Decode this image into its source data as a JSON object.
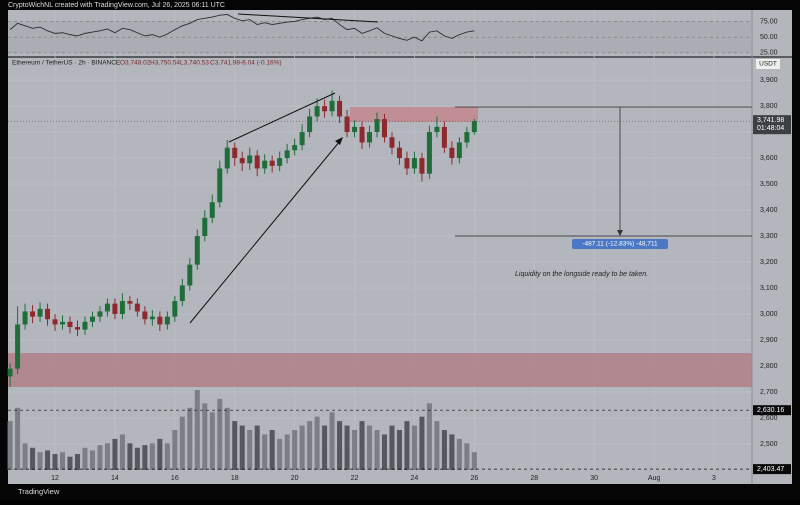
{
  "header": {
    "credit": "CryptoWichNL created with TradingView.com, Jul 26, 2025 06:11 UTC",
    "footer": "TradingView"
  },
  "chart_data": {
    "type": "candlestick",
    "symbol": "Ethereum / TetherUS · 2h · BINANCE",
    "ohlc_text": [
      "O3,748.02",
      "H3,750.54",
      "L3,740.53",
      "C3,741.98",
      "-6.04 (-0.16%)"
    ],
    "currency": "USDT",
    "annotation": "Liquidity on the longside ready to be taken.",
    "measure_label": "-487.11 (-12.83%) -48,711",
    "x": [
      10.5,
      10.75,
      11,
      11.25,
      11.5,
      11.75,
      12,
      12.25,
      12.5,
      12.75,
      13,
      13.25,
      13.5,
      13.75,
      14,
      14.25,
      14.5,
      14.75,
      15,
      15.25,
      15.5,
      15.75,
      16,
      16.25,
      16.5,
      16.75,
      17,
      17.25,
      17.5,
      17.75,
      18,
      18.25,
      18.5,
      18.75,
      19,
      19.25,
      19.5,
      19.75,
      20,
      20.25,
      20.5,
      20.75,
      21,
      21.25,
      21.5,
      21.75,
      22,
      22.25,
      22.5,
      22.75,
      23,
      23.25,
      23.5,
      23.75,
      24,
      24.25,
      24.5,
      24.75,
      25,
      25.25,
      25.5,
      25.75,
      26
    ],
    "open": [
      2760,
      2790,
      2960,
      3010,
      2990,
      3020,
      2980,
      2960,
      2970,
      2950,
      2940,
      2970,
      2990,
      3010,
      3040,
      3000,
      3050,
      3040,
      3010,
      2980,
      2990,
      2960,
      2990,
      3050,
      3110,
      3190,
      3300,
      3370,
      3430,
      3560,
      3640,
      3600,
      3580,
      3610,
      3560,
      3590,
      3570,
      3600,
      3630,
      3650,
      3700,
      3760,
      3800,
      3780,
      3820,
      3760,
      3700,
      3720,
      3660,
      3700,
      3750,
      3680,
      3640,
      3600,
      3560,
      3600,
      3540,
      3700,
      3720,
      3640,
      3600,
      3660,
      3700
    ],
    "high": [
      2810,
      3030,
      3040,
      3035,
      3045,
      3040,
      3000,
      2995,
      2990,
      2975,
      2990,
      3010,
      3030,
      3060,
      3060,
      3080,
      3070,
      3060,
      3030,
      3015,
      3010,
      3010,
      3070,
      3135,
      3215,
      3325,
      3400,
      3460,
      3590,
      3670,
      3660,
      3625,
      3640,
      3630,
      3615,
      3610,
      3625,
      3655,
      3675,
      3730,
      3790,
      3830,
      3825,
      3860,
      3840,
      3785,
      3745,
      3740,
      3725,
      3775,
      3770,
      3700,
      3665,
      3625,
      3625,
      3620,
      3725,
      3760,
      3740,
      3665,
      3680,
      3720,
      3750.54
    ],
    "low": [
      2720,
      2770,
      2940,
      2965,
      2970,
      2955,
      2935,
      2940,
      2925,
      2915,
      2920,
      2950,
      2970,
      2990,
      2980,
      2980,
      3015,
      2990,
      2960,
      2955,
      2935,
      2940,
      2970,
      3030,
      3090,
      3170,
      3280,
      3350,
      3410,
      3540,
      3570,
      3550,
      3555,
      3530,
      3540,
      3545,
      3550,
      3580,
      3610,
      3630,
      3680,
      3740,
      3755,
      3760,
      3735,
      3680,
      3680,
      3635,
      3640,
      3680,
      3660,
      3615,
      3575,
      3535,
      3540,
      3510,
      3520,
      3680,
      3620,
      3575,
      3580,
      3640,
      3690
    ],
    "close": [
      2790,
      2960,
      3010,
      2990,
      3020,
      2980,
      2960,
      2970,
      2950,
      2940,
      2970,
      2990,
      3010,
      3040,
      3000,
      3050,
      3040,
      3010,
      2980,
      2990,
      2960,
      2990,
      3050,
      3110,
      3190,
      3300,
      3370,
      3430,
      3560,
      3640,
      3600,
      3580,
      3610,
      3560,
      3590,
      3570,
      3600,
      3630,
      3650,
      3700,
      3760,
      3800,
      3780,
      3820,
      3760,
      3700,
      3720,
      3660,
      3700,
      3750,
      3680,
      3640,
      3600,
      3560,
      3600,
      3540,
      3700,
      3720,
      3640,
      3600,
      3660,
      3700,
      3741.98
    ],
    "volume": [
      55,
      70,
      30,
      25,
      20,
      22,
      18,
      20,
      15,
      18,
      25,
      22,
      28,
      30,
      35,
      40,
      30,
      25,
      28,
      30,
      35,
      30,
      45,
      60,
      70,
      90,
      75,
      65,
      80,
      70,
      55,
      50,
      45,
      50,
      40,
      45,
      35,
      40,
      45,
      50,
      55,
      60,
      50,
      65,
      55,
      50,
      45,
      55,
      50,
      45,
      40,
      50,
      45,
      55,
      50,
      60,
      75,
      55,
      45,
      40,
      35,
      30,
      20
    ],
    "rsi": [
      62,
      72,
      68,
      64,
      66,
      60,
      56,
      57,
      54,
      52,
      56,
      58,
      60,
      63,
      57,
      64,
      62,
      57,
      52,
      54,
      50,
      55,
      62,
      68,
      72,
      78,
      80,
      82,
      85,
      86,
      80,
      76,
      78,
      70,
      73,
      70,
      72,
      74,
      75,
      78,
      80,
      82,
      78,
      80,
      70,
      62,
      64,
      56,
      60,
      65,
      56,
      52,
      48,
      45,
      50,
      44,
      58,
      60,
      52,
      48,
      54,
      58,
      60
    ],
    "rsi_ylim": [
      20,
      90
    ],
    "rsi_yticks": [
      {
        "value": 75,
        "label": "75.00"
      },
      {
        "value": 50,
        "label": "50.00"
      },
      {
        "value": 25,
        "label": "25.00"
      }
    ],
    "xlim": [
      10.43,
      35.27
    ],
    "xticks": [
      12,
      14,
      16,
      18,
      20,
      22,
      24,
      26,
      28,
      30,
      {
        "value": 32,
        "label": "Aug"
      },
      {
        "value": 34,
        "label": "3"
      }
    ],
    "ylim": [
      2400,
      3985
    ],
    "yticks": [
      {
        "value": 2500,
        "label": "2,500"
      },
      {
        "value": 2600,
        "label": "2,600"
      },
      {
        "value": 2700,
        "label": "2,700"
      },
      {
        "value": 2800,
        "label": "2,800"
      },
      {
        "value": 2900,
        "label": "2,900"
      },
      {
        "value": 3000,
        "label": "3,000"
      },
      {
        "value": 3100,
        "label": "3,100"
      },
      {
        "value": 3200,
        "label": "3,200"
      },
      {
        "value": 3300,
        "label": "3,300"
      },
      {
        "value": 3400,
        "label": "3,400"
      },
      {
        "value": 3500,
        "label": "3,500"
      },
      {
        "value": 3600,
        "label": "3,600"
      },
      {
        "value": 3700,
        "label": "3,700"
      },
      {
        "value": 3800,
        "label": "3,800"
      },
      {
        "value": 3900,
        "label": "3,900"
      }
    ],
    "last_price": {
      "value": 3741.98,
      "label": "3,741.98",
      "countdown": "01:48:04"
    },
    "price_markers": [
      {
        "value": 2630.16,
        "label": "2,630.16"
      },
      {
        "value": 2403.47,
        "label": "2,403.47"
      }
    ],
    "up_color": "#1f6e3a",
    "down_color": "#8e2a2e",
    "up_volume_color": "#7b7e86",
    "down_volume_color": "#55585e",
    "rsi_color": "#2a2c30",
    "grid": true
  }
}
